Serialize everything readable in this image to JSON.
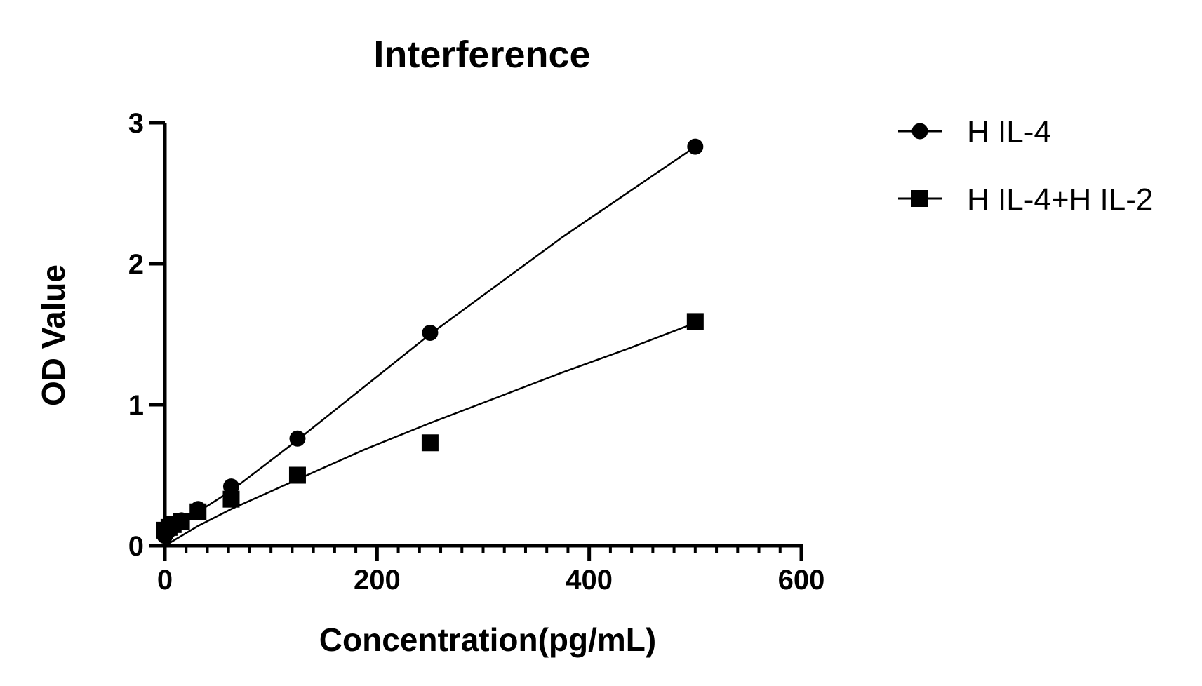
{
  "chart_data": {
    "type": "scatter",
    "title": "Interference",
    "xlabel": "Concentration(pg/mL)",
    "ylabel": "OD Value",
    "xlim": [
      0,
      600
    ],
    "ylim": [
      0,
      3
    ],
    "xticks": [
      0,
      200,
      400,
      600
    ],
    "xtick_labels": [
      "0",
      "200",
      "400",
      "600"
    ],
    "x_minor_step": 20,
    "yticks": [
      0,
      1,
      2,
      3
    ],
    "ytick_labels": [
      "0",
      "1",
      "2",
      "3"
    ],
    "grid": false,
    "legend_position": "top-right",
    "series": [
      {
        "name": "H IL-4",
        "marker": "circle",
        "color": "#000000",
        "x": [
          0,
          3.9,
          7.8,
          15.6,
          31.25,
          62.5,
          125,
          250,
          500
        ],
        "y": [
          0.07,
          0.11,
          0.15,
          0.18,
          0.26,
          0.42,
          0.76,
          1.51,
          2.83
        ],
        "fit_line": {
          "x": [
            0,
            3.9,
            7.8,
            15.6,
            31.25,
            62.5,
            125,
            250,
            375,
            500
          ],
          "y": [
            0.05,
            0.09,
            0.12,
            0.17,
            0.24,
            0.39,
            0.75,
            1.5,
            2.19,
            2.83
          ]
        }
      },
      {
        "name": "H IL-4+H IL-2",
        "marker": "square",
        "color": "#000000",
        "x": [
          0,
          3.9,
          7.8,
          15.6,
          31.25,
          62.5,
          125,
          250,
          500
        ],
        "y": [
          0.11,
          0.13,
          0.15,
          0.17,
          0.24,
          0.33,
          0.5,
          0.73,
          1.59
        ],
        "fit_line": {
          "x": [
            0,
            31.25,
            62.5,
            125,
            187.5,
            250,
            312.5,
            375,
            437.5,
            500
          ],
          "y": [
            0.0,
            0.14,
            0.26,
            0.47,
            0.68,
            0.87,
            1.05,
            1.23,
            1.4,
            1.58
          ]
        }
      }
    ]
  }
}
